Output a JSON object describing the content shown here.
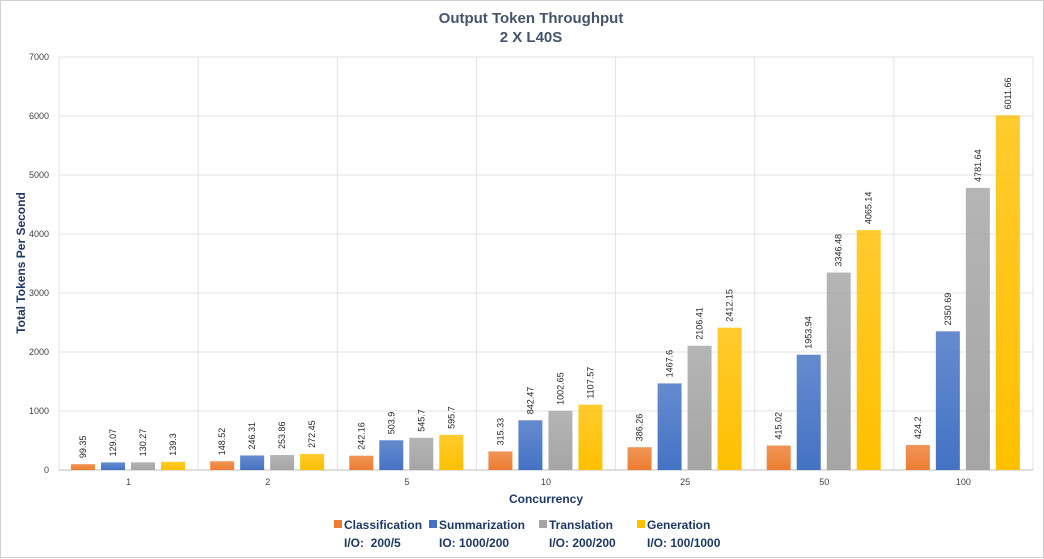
{
  "chart_data": {
    "type": "bar",
    "title": "Output Token Throughput",
    "subtitle": "2 X L40S",
    "xlabel": "Concurrency",
    "ylabel": "Total Tokens Per Second",
    "ylim": [
      0,
      7000
    ],
    "yticks": [
      0,
      1000,
      2000,
      3000,
      4000,
      5000,
      6000,
      7000
    ],
    "grid": true,
    "legend_position": "bottom",
    "categories": [
      "1",
      "2",
      "5",
      "10",
      "25",
      "50",
      "100"
    ],
    "series": [
      {
        "name": "Classification",
        "sublabel": "I/O:  200/5",
        "color": "#ed7d31",
        "values": [
          99.35,
          148.52,
          242.16,
          315.33,
          386.26,
          415.02,
          424.2
        ],
        "labels": [
          "99.35",
          "148.52",
          "242.16",
          "315.33",
          "386.26",
          "415.02",
          "424.2"
        ]
      },
      {
        "name": "Summarization",
        "sublabel": "IO: 1000/200",
        "color": "#4472c4",
        "values": [
          129.07,
          246.31,
          503.9,
          842.47,
          1467.6,
          1953.94,
          2350.69
        ],
        "labels": [
          "129.07",
          "246.31",
          "503.9",
          "842.47",
          "1467.6",
          "1953.94",
          "2350.69"
        ]
      },
      {
        "name": "Translation",
        "sublabel": "I/O: 200/200",
        "color": "#a5a5a5",
        "values": [
          130.27,
          253.86,
          545.7,
          1002.65,
          2106.41,
          3346.48,
          4781.64
        ],
        "labels": [
          "130.27",
          "253.86",
          "545.7",
          "1002.65",
          "2106.41",
          "3346.48",
          "4781.64"
        ]
      },
      {
        "name": "Generation",
        "sublabel": "I/O: 100/1000",
        "color": "#ffc000",
        "values": [
          139.3,
          272.45,
          595.7,
          1107.57,
          2412.15,
          4065.14,
          6011.66
        ],
        "labels": [
          "139.3",
          "272.45",
          "595.7",
          "1107.57",
          "2412.15",
          "4065.14",
          "6011.66"
        ]
      }
    ]
  }
}
